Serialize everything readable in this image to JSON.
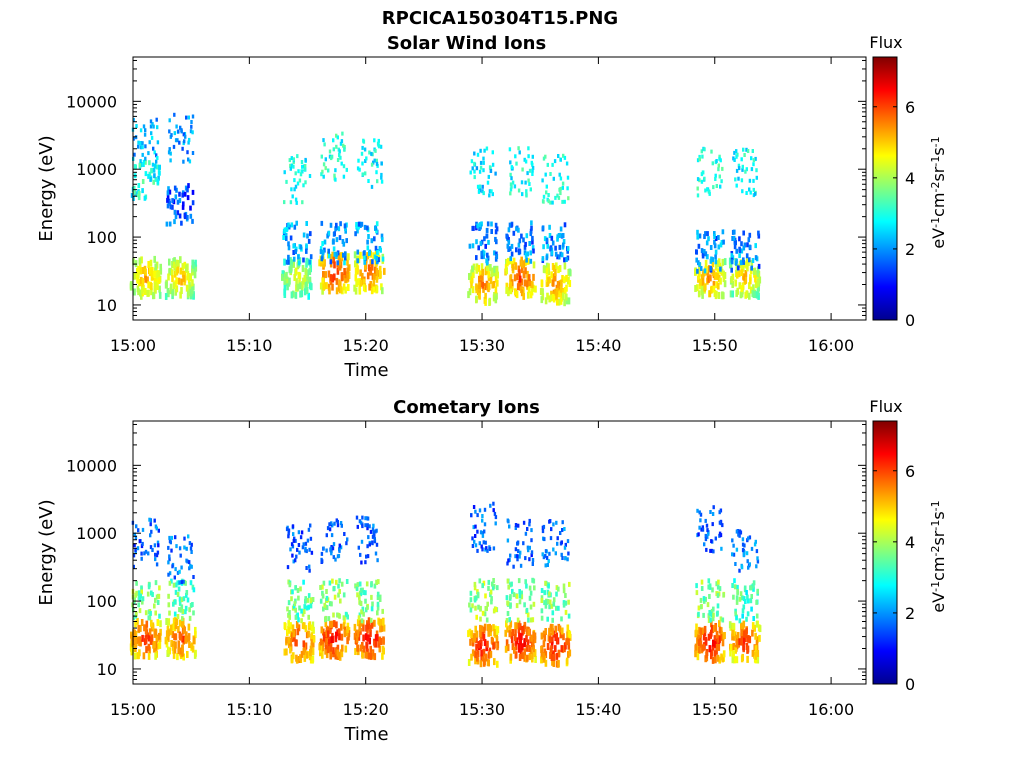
{
  "figure_title": "RPCICA150304T15.PNG",
  "colormap": [
    "#00008f",
    "#0000ff",
    "#0080ff",
    "#00ffff",
    "#80ff80",
    "#ffff00",
    "#ff8000",
    "#ff0000",
    "#800000"
  ],
  "chart_data": [
    {
      "type": "heatmap",
      "title": "Solar Wind Ions",
      "xlabel": "Time",
      "ylabel": "Energy (eV)",
      "x_tick_labels": [
        "15:00",
        "15:10",
        "15:20",
        "15:30",
        "15:40",
        "15:50",
        "16:00"
      ],
      "xlim_minutes": [
        0,
        63
      ],
      "y_scale": "log",
      "ylim": [
        6,
        45000
      ],
      "y_ticks": [
        10,
        100,
        1000,
        10000
      ],
      "y_tick_labels": [
        "10",
        "100",
        "1000",
        "10000"
      ],
      "colorbar": {
        "label": "Flux",
        "unit": "eV^-1 cm^-2 sr^-1 s^-1",
        "range": [
          0,
          7.4
        ],
        "ticks": [
          0,
          2,
          4,
          6
        ]
      },
      "bursts": [
        {
          "t": 1.0,
          "lo": {
            "e": 25,
            "v": 5.8
          },
          "hi": {
            "e": 2500,
            "v": 2.8
          },
          "mid": {
            "e": 700,
            "v": 3.6
          }
        },
        {
          "t": 4.0,
          "lo": {
            "e": 25,
            "v": 5.6
          },
          "hi": {
            "e": 2800,
            "v": 2.6
          },
          "mid": {
            "e": 300,
            "v": 2.2
          }
        },
        {
          "t": 14.0,
          "lo": {
            "e": 25,
            "v": 5.0
          },
          "hi": {
            "e": 700,
            "v": 3.5
          },
          "mid": {
            "e": 80,
            "v": 2.8
          }
        },
        {
          "t": 17.2,
          "lo": {
            "e": 30,
            "v": 6.6
          },
          "hi": {
            "e": 1500,
            "v": 3.6
          },
          "mid": {
            "e": 80,
            "v": 2.8
          }
        },
        {
          "t": 20.2,
          "lo": {
            "e": 30,
            "v": 6.3
          },
          "hi": {
            "e": 1200,
            "v": 3.4
          },
          "mid": {
            "e": 80,
            "v": 2.9
          }
        },
        {
          "t": 30.0,
          "lo": {
            "e": 20,
            "v": 6.0
          },
          "hi": {
            "e": 900,
            "v": 3.2
          },
          "mid": {
            "e": 80,
            "v": 2.5
          }
        },
        {
          "t": 33.2,
          "lo": {
            "e": 25,
            "v": 6.4
          },
          "hi": {
            "e": 900,
            "v": 3.5
          },
          "mid": {
            "e": 80,
            "v": 2.6
          }
        },
        {
          "t": 36.2,
          "lo": {
            "e": 20,
            "v": 6.0
          },
          "hi": {
            "e": 700,
            "v": 3.6
          },
          "mid": {
            "e": 80,
            "v": 2.6
          }
        },
        {
          "t": 49.5,
          "lo": {
            "e": 25,
            "v": 6.0
          },
          "hi": {
            "e": 900,
            "v": 3.6
          },
          "mid": {
            "e": 60,
            "v": 2.6
          }
        },
        {
          "t": 52.5,
          "lo": {
            "e": 25,
            "v": 5.6
          },
          "hi": {
            "e": 900,
            "v": 3.4
          },
          "mid": {
            "e": 60,
            "v": 2.6
          }
        }
      ]
    },
    {
      "type": "heatmap",
      "title": "Cometary Ions",
      "xlabel": "Time",
      "ylabel": "Energy (eV)",
      "x_tick_labels": [
        "15:00",
        "15:10",
        "15:20",
        "15:30",
        "15:40",
        "15:50",
        "16:00"
      ],
      "xlim_minutes": [
        0,
        63
      ],
      "y_scale": "log",
      "ylim": [
        6,
        45000
      ],
      "y_ticks": [
        10,
        100,
        1000,
        10000
      ],
      "y_tick_labels": [
        "10",
        "100",
        "1000",
        "10000"
      ],
      "colorbar": {
        "label": "Flux",
        "unit": "eV^-1 cm^-2 sr^-1 s^-1",
        "range": [
          0,
          7.4
        ],
        "ticks": [
          0,
          2,
          4,
          6
        ]
      },
      "bursts": [
        {
          "t": 1.0,
          "lo": {
            "e": 28,
            "v": 6.6
          },
          "hi": {
            "e": 700,
            "v": 2.2
          },
          "mid": {
            "e": 100,
            "v": 4.4
          }
        },
        {
          "t": 4.0,
          "lo": {
            "e": 28,
            "v": 6.4
          },
          "hi": {
            "e": 400,
            "v": 2.4
          },
          "mid": {
            "e": 100,
            "v": 4.2
          }
        },
        {
          "t": 14.2,
          "lo": {
            "e": 25,
            "v": 6.6
          },
          "hi": {
            "e": 600,
            "v": 2.2
          },
          "mid": {
            "e": 100,
            "v": 4.2
          }
        },
        {
          "t": 17.2,
          "lo": {
            "e": 28,
            "v": 6.9
          },
          "hi": {
            "e": 800,
            "v": 2.2
          },
          "mid": {
            "e": 100,
            "v": 4.4
          }
        },
        {
          "t": 20.2,
          "lo": {
            "e": 28,
            "v": 7.0
          },
          "hi": {
            "e": 800,
            "v": 2.2
          },
          "mid": {
            "e": 100,
            "v": 4.4
          }
        },
        {
          "t": 30.0,
          "lo": {
            "e": 22,
            "v": 6.9
          },
          "hi": {
            "e": 1200,
            "v": 2.2
          },
          "mid": {
            "e": 100,
            "v": 4.6
          }
        },
        {
          "t": 33.2,
          "lo": {
            "e": 25,
            "v": 7.0
          },
          "hi": {
            "e": 700,
            "v": 2.2
          },
          "mid": {
            "e": 100,
            "v": 4.4
          }
        },
        {
          "t": 36.2,
          "lo": {
            "e": 22,
            "v": 6.9
          },
          "hi": {
            "e": 700,
            "v": 2.4
          },
          "mid": {
            "e": 100,
            "v": 4.4
          }
        },
        {
          "t": 49.5,
          "lo": {
            "e": 25,
            "v": 7.0
          },
          "hi": {
            "e": 1100,
            "v": 2.2
          },
          "mid": {
            "e": 100,
            "v": 4.4
          }
        },
        {
          "t": 52.5,
          "lo": {
            "e": 25,
            "v": 6.6
          },
          "hi": {
            "e": 500,
            "v": 2.4
          },
          "mid": {
            "e": 100,
            "v": 4.0
          }
        }
      ]
    }
  ]
}
